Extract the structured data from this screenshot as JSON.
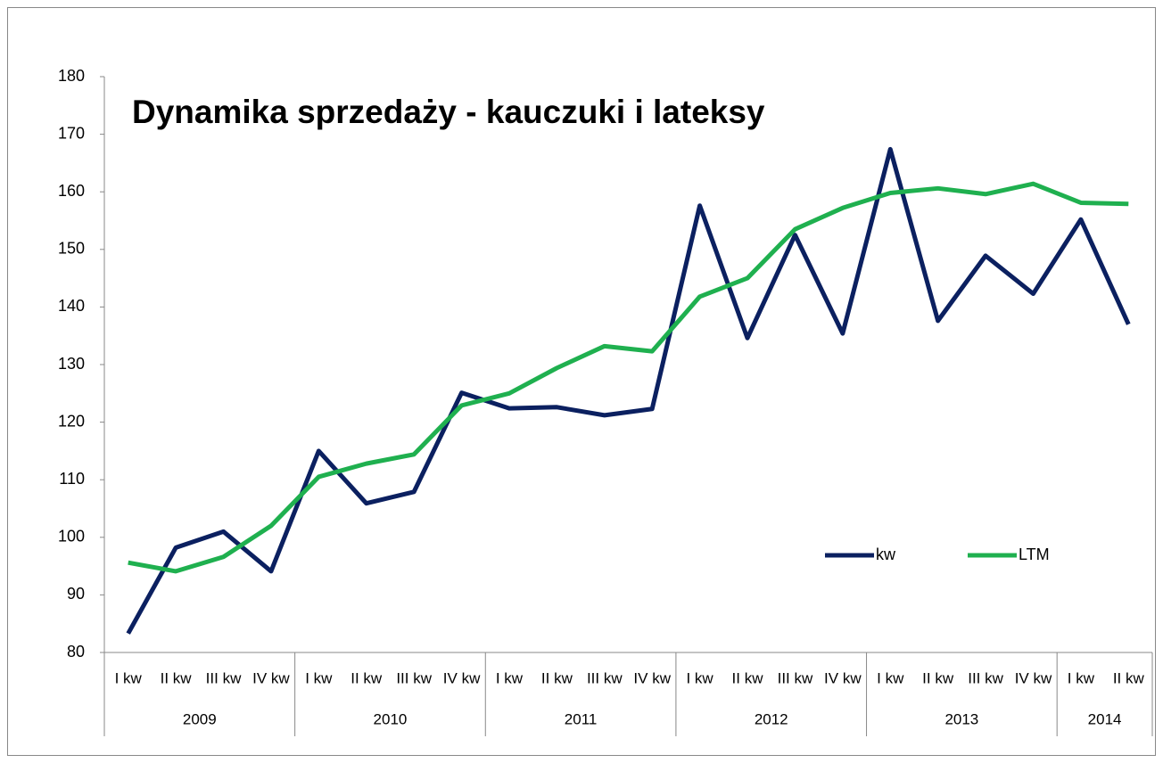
{
  "chart_data": {
    "type": "line",
    "title": "Dynamika sprzedaży - kauczuki i lateksy",
    "groups": [
      {
        "label": "2009",
        "categories": [
          "I kw",
          "II kw",
          "III kw",
          "IV kw"
        ]
      },
      {
        "label": "2010",
        "categories": [
          "I kw",
          "II kw",
          "III kw",
          "IV kw"
        ]
      },
      {
        "label": "2011",
        "categories": [
          "I kw",
          "II kw",
          "III kw",
          "IV kw"
        ]
      },
      {
        "label": "2012",
        "categories": [
          "I kw",
          "II kw",
          "III kw",
          "IV kw"
        ]
      },
      {
        "label": "2013",
        "categories": [
          "I kw",
          "II kw",
          "III kw",
          "IV kw"
        ]
      },
      {
        "label": "2014",
        "categories": [
          "I kw",
          "II kw"
        ]
      }
    ],
    "series": [
      {
        "name": "kw",
        "color": "#0b2060",
        "values": [
          83.3,
          98.2,
          101,
          94.1,
          115,
          105.9,
          107.9,
          125.1,
          122.4,
          122.6,
          121.2,
          122.3,
          157.6,
          134.6,
          152.5,
          135.4,
          167.4,
          137.6,
          148.9,
          142.3,
          155.2,
          137
        ]
      },
      {
        "name": "LTM",
        "color": "#1fb04f",
        "values": [
          95.6,
          94.1,
          96.6,
          102,
          110.5,
          112.8,
          114.4,
          122.9,
          125,
          129.4,
          133.2,
          132.3,
          141.8,
          145,
          153.5,
          157.2,
          159.8,
          160.6,
          159.6,
          161.4,
          158.1,
          157.9
        ]
      }
    ],
    "ylim": [
      80,
      180
    ],
    "yticks": [
      80,
      90,
      100,
      110,
      120,
      130,
      140,
      150,
      160,
      170,
      180
    ],
    "grid": false,
    "legend": "right"
  }
}
